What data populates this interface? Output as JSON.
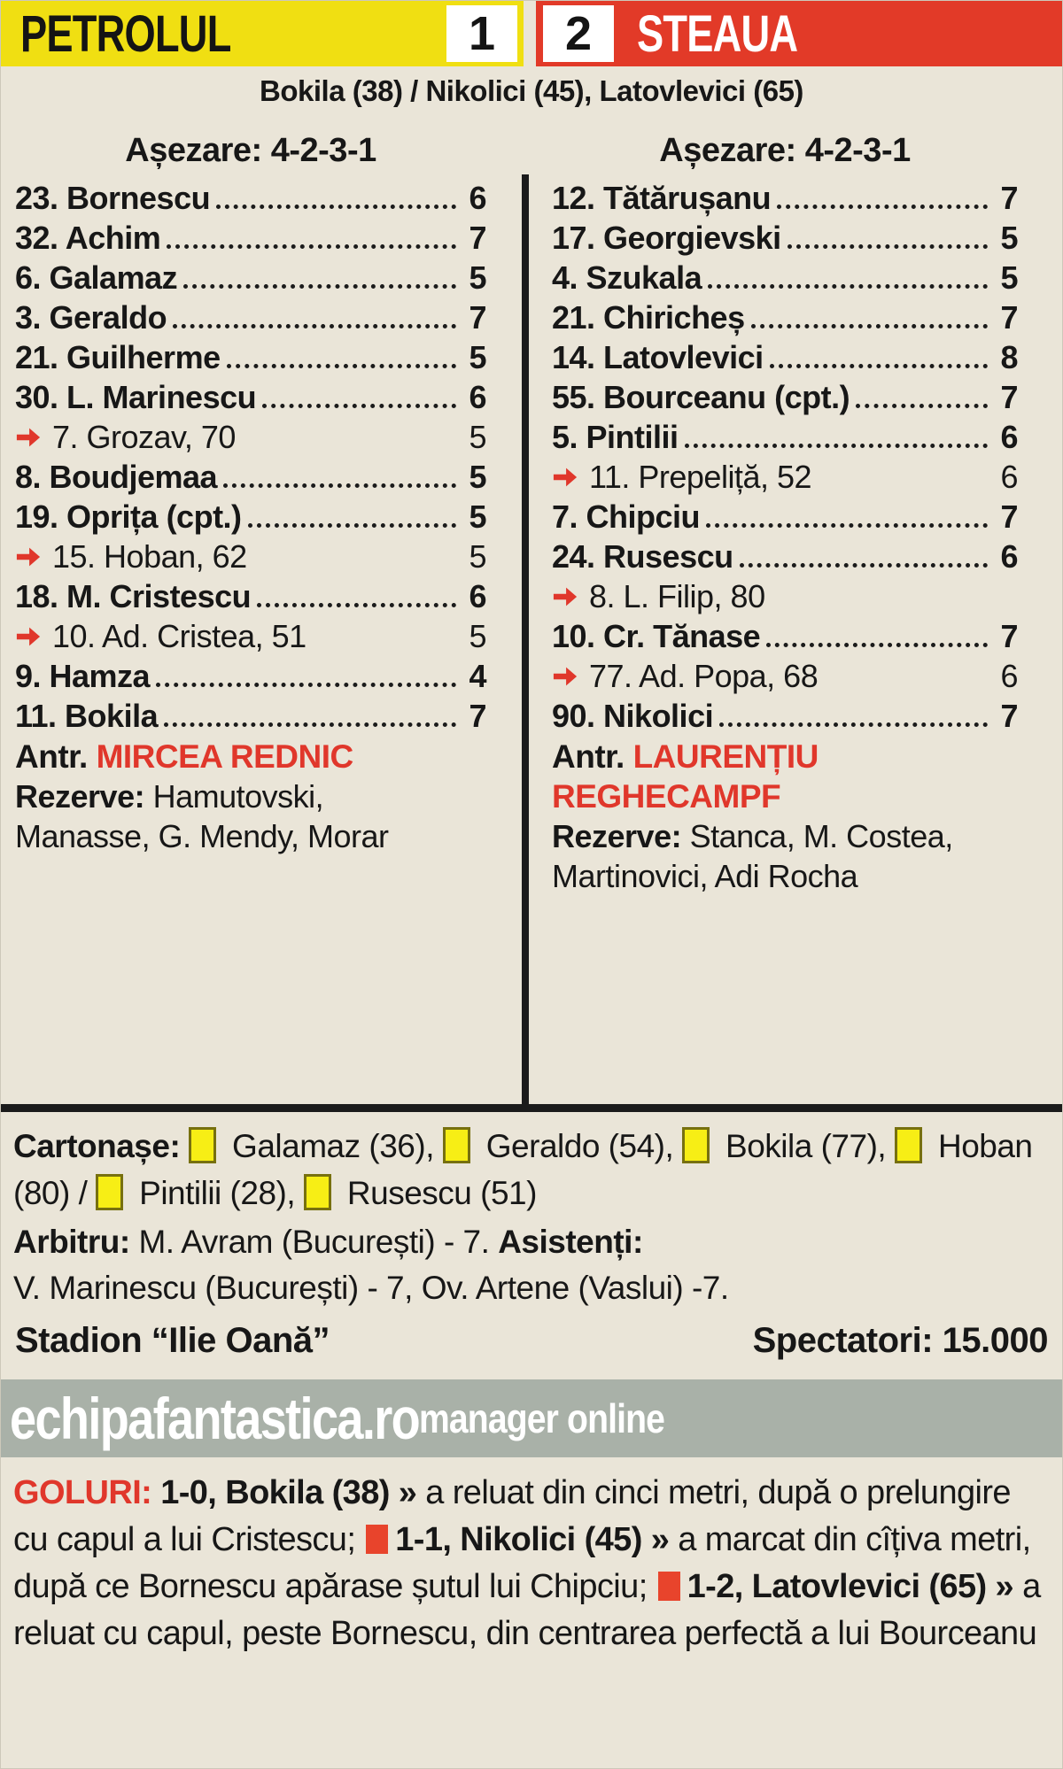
{
  "colors": {
    "home_band": "#f0df12",
    "away_band": "#e23a28",
    "accent_red": "#e0372b",
    "card_yellow": "#f7ee15",
    "banner_bg": "#a9b1a8",
    "paper_bg": "#eae5d8"
  },
  "header": {
    "home_team": "PETROLUL",
    "home_score": "1",
    "away_score": "2",
    "away_team": "STEAUA",
    "scorers": "Bokila (38) / Nikolici (45), Latovlevici (65)"
  },
  "teams": [
    {
      "formation_label": "Așezare: 4-2-3-1",
      "players": [
        {
          "text": "23. Bornescu",
          "rating": "6",
          "sub": false
        },
        {
          "text": "32. Achim",
          "rating": "7",
          "sub": false
        },
        {
          "text": "6. Galamaz",
          "rating": "5",
          "sub": false
        },
        {
          "text": "3. Geraldo",
          "rating": "7",
          "sub": false
        },
        {
          "text": "21. Guilherme",
          "rating": "5",
          "sub": false
        },
        {
          "text": "30. L. Marinescu",
          "rating": "6",
          "sub": false
        },
        {
          "text": "7. Grozav, 70",
          "rating": "5",
          "sub": true
        },
        {
          "text": "8. Boudjemaa",
          "rating": "5",
          "sub": false
        },
        {
          "text": "19. Oprița (cpt.)",
          "rating": "5",
          "sub": false
        },
        {
          "text": "15. Hoban, 62",
          "rating": "5",
          "sub": true
        },
        {
          "text": "18. M. Cristescu",
          "rating": "6",
          "sub": false
        },
        {
          "text": "10. Ad. Cristea, 51",
          "rating": "5",
          "sub": true
        },
        {
          "text": "9. Hamza",
          "rating": "4",
          "sub": false
        },
        {
          "text": "11. Bokila",
          "rating": "7",
          "sub": false
        }
      ],
      "coach_label": "Antr.",
      "coach": "MIRCEA REDNIC",
      "reserves_label": "Rezerve:",
      "reserves": "Hamutovski, Manasse, G. Mendy, Morar"
    },
    {
      "formation_label": "Așezare: 4-2-3-1",
      "players": [
        {
          "text": "12. Tătărușanu",
          "rating": "7",
          "sub": false
        },
        {
          "text": "17. Georgievski",
          "rating": "5",
          "sub": false
        },
        {
          "text": "4. Szukala",
          "rating": "5",
          "sub": false
        },
        {
          "text": "21. Chiricheș",
          "rating": "7",
          "sub": false
        },
        {
          "text": "14. Latovlevici",
          "rating": "8",
          "sub": false
        },
        {
          "text": "55. Bourceanu (cpt.)",
          "rating": "7",
          "sub": false
        },
        {
          "text": "5. Pintilii",
          "rating": "6",
          "sub": false
        },
        {
          "text": "11. Prepeliță, 52",
          "rating": "6",
          "sub": true
        },
        {
          "text": "7. Chipciu",
          "rating": "7",
          "sub": false
        },
        {
          "text": "24. Rusescu",
          "rating": "6",
          "sub": false
        },
        {
          "text": "8. L. Filip, 80",
          "rating": "",
          "sub": true
        },
        {
          "text": "10. Cr. Tănase",
          "rating": "7",
          "sub": false
        },
        {
          "text": "77. Ad. Popa, 68",
          "rating": "6",
          "sub": true
        },
        {
          "text": "90. Nikolici",
          "rating": "7",
          "sub": false
        }
      ],
      "coach_label": "Antr.",
      "coach": "LAURENȚIU REGHECAMPF",
      "reserves_label": "Rezerve:",
      "reserves": "Stanca, M. Costea, Martinovici, Adi Rocha"
    }
  ],
  "cards": {
    "label": "Cartonașe:",
    "items": [
      "Galamaz (36),",
      "Geraldo (54),",
      "Bokila (77),",
      "Hoban (80) /",
      "Pintilii (28),",
      "Rusescu (51)"
    ]
  },
  "officials": {
    "referee_label": "Arbitru:",
    "referee_text": "M. Avram (București) - 7.",
    "assistants_label": "Asistenți:",
    "assistants_text": "V. Marinescu (București) - 7, Ov. Artene (Vaslui) -7."
  },
  "venue": {
    "stadium": "Stadion “Ilie Oană”",
    "spectators": "Spectatori: 15.000"
  },
  "banner": {
    "site": "echipafantastica.ro",
    "tagline": "manager online"
  },
  "goals": {
    "segments": [
      {
        "type": "label",
        "text": "GOLURI: "
      },
      {
        "type": "bold",
        "text": "1-0, Bokila (38) » "
      },
      {
        "type": "text",
        "text": "a reluat din cinci metri, după o prelungire cu capul a lui Cristescu; "
      },
      {
        "type": "square"
      },
      {
        "type": "bold",
        "text": "1-1, Nikolici (45) » "
      },
      {
        "type": "text",
        "text": "a marcat din cîțiva metri, după ce Bornescu apărase șutul lui Chipciu; "
      },
      {
        "type": "square"
      },
      {
        "type": "bold",
        "text": "1-2, Latovlevici (65) » "
      },
      {
        "type": "text",
        "text": "a reluat cu capul, peste Bornescu, din centrarea perfectă a lui Bourceanu"
      }
    ]
  }
}
